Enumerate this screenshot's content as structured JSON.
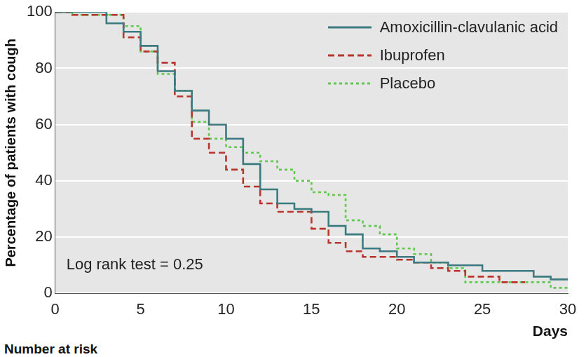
{
  "chart_data": {
    "type": "line",
    "xlabel": "Days",
    "ylabel": "Percentage of patients with cough",
    "annotations": [
      "Log rank test = 0.25"
    ],
    "footnote": "Number at risk",
    "xlim": [
      0,
      30
    ],
    "xticks": [
      0,
      5,
      10,
      15,
      20,
      25,
      30
    ],
    "ylim": [
      0,
      100
    ],
    "yticks": [
      0,
      20,
      40,
      60,
      80,
      100
    ],
    "grid": true,
    "legend": "upper right",
    "series": [
      {
        "name": "Amoxicillin-clavulanic acid",
        "color": "#3b7b80",
        "line_style": "solid",
        "x": [
          0,
          3,
          4,
          5,
          6,
          7,
          8,
          9,
          10,
          11,
          12,
          13,
          14,
          15,
          16,
          17,
          18,
          19,
          20,
          21,
          23,
          25,
          28,
          29,
          30
        ],
        "values": [
          100,
          96,
          93,
          88,
          79,
          72,
          65,
          60,
          55,
          46,
          37,
          32,
          30,
          29,
          24,
          21,
          16,
          15,
          13,
          11,
          10,
          8,
          6,
          5,
          5
        ]
      },
      {
        "name": "Ibuprofen",
        "color": "#b8342c",
        "line_style": "dashed",
        "x": [
          0,
          1,
          4,
          5,
          6,
          7,
          8,
          9,
          10,
          11,
          12,
          13,
          15,
          16,
          17,
          18,
          20,
          21,
          22,
          23,
          24,
          26,
          27.5
        ],
        "values": [
          100,
          99,
          91,
          86,
          82,
          70,
          55,
          50,
          44,
          38,
          32,
          29,
          23,
          18,
          15,
          13,
          12,
          11,
          9,
          8,
          6,
          4,
          4
        ]
      },
      {
        "name": "Placebo",
        "color": "#5ec94c",
        "line_style": "dotted",
        "x": [
          0,
          1,
          4,
          5,
          6,
          7,
          8,
          9,
          10,
          11,
          12,
          13,
          14,
          15,
          16,
          17,
          18,
          19,
          20,
          21,
          22,
          23,
          24,
          29,
          30
        ],
        "values": [
          100,
          99,
          95,
          86,
          78,
          72,
          61,
          55,
          52,
          50,
          47,
          44,
          40,
          36,
          35,
          26,
          24,
          21,
          16,
          14,
          11,
          9,
          4,
          2,
          2
        ]
      }
    ]
  }
}
